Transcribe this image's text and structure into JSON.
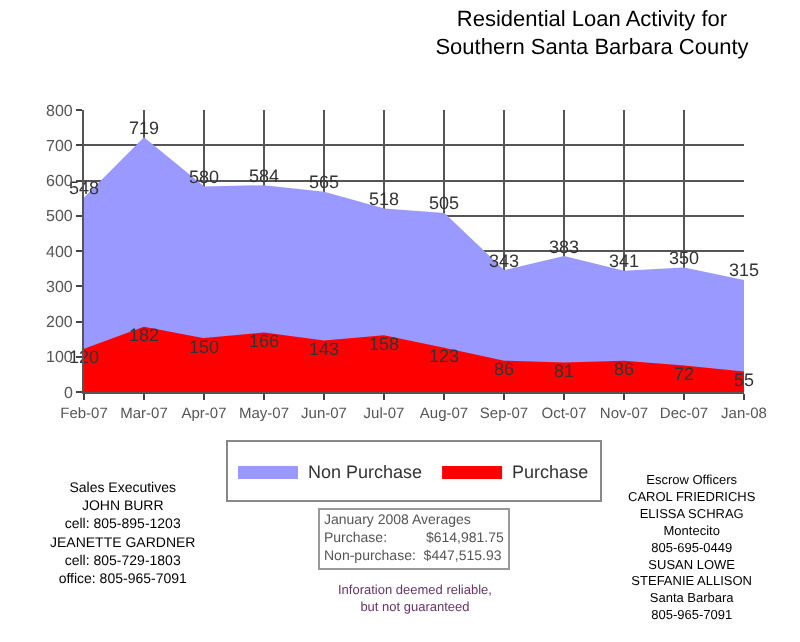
{
  "chart_data": {
    "type": "area",
    "title": "Residential Loan Activity for\nSouthern Santa Barbara County",
    "categories": [
      "Feb-07",
      "Mar-07",
      "Apr-07",
      "May-07",
      "Jun-07",
      "Jul-07",
      "Aug-07",
      "Sep-07",
      "Oct-07",
      "Nov-07",
      "Dec-07",
      "Jan-08"
    ],
    "series": [
      {
        "name": "Non Purchase",
        "color": "#9999ff",
        "values": [
          548,
          719,
          580,
          584,
          565,
          518,
          505,
          343,
          383,
          341,
          350,
          315
        ]
      },
      {
        "name": "Purchase",
        "color": "#ff0000",
        "values": [
          120,
          182,
          150,
          166,
          143,
          158,
          123,
          86,
          81,
          86,
          72,
          55
        ]
      }
    ],
    "ylim": [
      0,
      800
    ],
    "yticks": [
      0,
      100,
      200,
      300,
      400,
      500,
      600,
      700,
      800
    ],
    "grid": true,
    "legend": "bottom",
    "data_labels": true,
    "annotations": [
      "Sales Executives\nJOHN BURR\ncell: 805-895-1203\nJEANETTE GARDNER\ncell: 805-729-1803\noffice: 805-965-7091",
      "January 2008 Averages\nPurchase:          $614,981.75\nNon-purchase:  $447,515.93",
      "Inforation deemed reliable,\nbut not guaranteed",
      "Escrow Officers\nCAROL FRIEDRICHS\nELISSA SCHRAG\nMontecito\n805-695-0449\nSUSAN LOWE\nSTEFANIE ALLISON\nSanta Barbara\n805-965-7091"
    ]
  }
}
